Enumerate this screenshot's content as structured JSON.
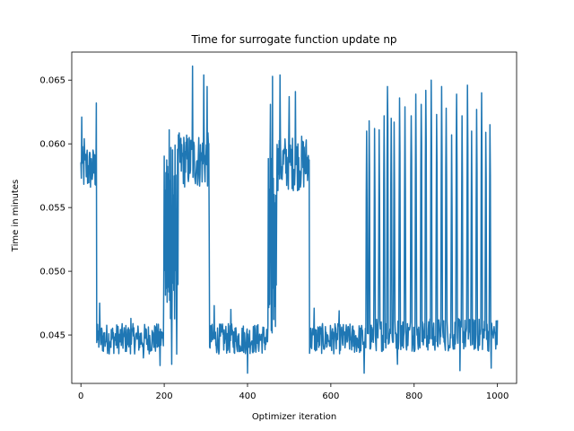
{
  "chart_data": {
    "type": "line",
    "title": "Time for surrogate function update np",
    "xlabel": "Optimizer iteration",
    "ylabel": "Time in minutes",
    "xlim": [
      -22,
      1046
    ],
    "ylim": [
      0.0412,
      0.0672
    ],
    "xticks": [
      0,
      200,
      400,
      600,
      800,
      1000
    ],
    "xtick_labels": [
      "0",
      "200",
      "400",
      "600",
      "800",
      "1000"
    ],
    "yticks": [
      0.045,
      0.05,
      0.055,
      0.06,
      0.065
    ],
    "ytick_labels": [
      "0.045",
      "0.050",
      "0.055",
      "0.060",
      "0.065"
    ],
    "grid": false,
    "series": [
      {
        "color": "#1f77b4",
        "segments": [
          {
            "x_start": 0,
            "x_end": 37,
            "mean": 0.058,
            "amp": 0.0018,
            "spikes": [
              [
                2,
                0.0621
              ],
              [
                8,
                0.0604
              ],
              [
                15,
                0.0595
              ],
              [
                37,
                0.0632
              ]
            ]
          },
          {
            "x_start": 38,
            "x_end": 198,
            "mean": 0.0447,
            "amp": 0.0012,
            "spikes": [
              [
                45,
                0.0475
              ],
              [
                120,
                0.0463
              ],
              [
                150,
                0.0432
              ],
              [
                190,
                0.0426
              ]
            ]
          },
          {
            "x_start": 199,
            "x_end": 233,
            "mean": 0.053,
            "amp": 0.007,
            "osc": true,
            "spikes": [
              [
                198,
                0.064
              ],
              [
                212,
                0.0611
              ],
              [
                218,
                0.0427
              ],
              [
                230,
                0.0435
              ]
            ]
          },
          {
            "x_start": 234,
            "x_end": 308,
            "mean": 0.0587,
            "amp": 0.0022,
            "spikes": [
              [
                268,
                0.0661
              ],
              [
                295,
                0.0654
              ],
              [
                303,
                0.0645
              ],
              [
                308,
                0.0531
              ]
            ]
          },
          {
            "x_start": 309,
            "x_end": 448,
            "mean": 0.0447,
            "amp": 0.0012,
            "spikes": [
              [
                320,
                0.0473
              ],
              [
                360,
                0.047
              ],
              [
                400,
                0.042
              ]
            ]
          },
          {
            "x_start": 449,
            "x_end": 470,
            "mean": 0.052,
            "amp": 0.007,
            "osc": true,
            "spikes": [
              [
                455,
                0.0631
              ],
              [
                460,
                0.0653
              ]
            ]
          },
          {
            "x_start": 471,
            "x_end": 548,
            "mean": 0.0585,
            "amp": 0.0022,
            "spikes": [
              [
                478,
                0.0654
              ],
              [
                500,
                0.0637
              ],
              [
                515,
                0.0641
              ],
              [
                545,
                0.0578
              ]
            ]
          },
          {
            "x_start": 549,
            "x_end": 683,
            "mean": 0.0447,
            "amp": 0.0012,
            "spikes": [
              [
                560,
                0.0471
              ],
              [
                620,
                0.0469
              ],
              [
                680,
                0.042
              ]
            ]
          },
          {
            "x_start": 684,
            "x_end": 1000,
            "mean": 0.045,
            "amp": 0.0013,
            "osc_peaks": [
              [
                686,
                0.061
              ],
              [
                692,
                0.0618
              ],
              [
                705,
                0.0612
              ],
              [
                716,
                0.0611
              ],
              [
                728,
                0.0622
              ],
              [
                736,
                0.0645
              ],
              [
                745,
                0.062
              ],
              [
                752,
                0.0617
              ],
              [
                765,
                0.0636
              ],
              [
                778,
                0.0629
              ],
              [
                793,
                0.0622
              ],
              [
                804,
                0.0639
              ],
              [
                817,
                0.0631
              ],
              [
                828,
                0.0642
              ],
              [
                841,
                0.065
              ],
              [
                854,
                0.0623
              ],
              [
                866,
                0.0645
              ],
              [
                877,
                0.0628
              ],
              [
                890,
                0.0607
              ],
              [
                902,
                0.0639
              ],
              [
                915,
                0.0622
              ],
              [
                928,
                0.0646
              ],
              [
                938,
                0.061
              ],
              [
                950,
                0.0627
              ],
              [
                962,
                0.064
              ],
              [
                972,
                0.0609
              ],
              [
                982,
                0.0615
              ]
            ],
            "spikes": [
              [
                760,
                0.0427
              ],
              [
                910,
                0.0422
              ],
              [
                985,
                0.0424
              ]
            ]
          }
        ]
      }
    ]
  }
}
